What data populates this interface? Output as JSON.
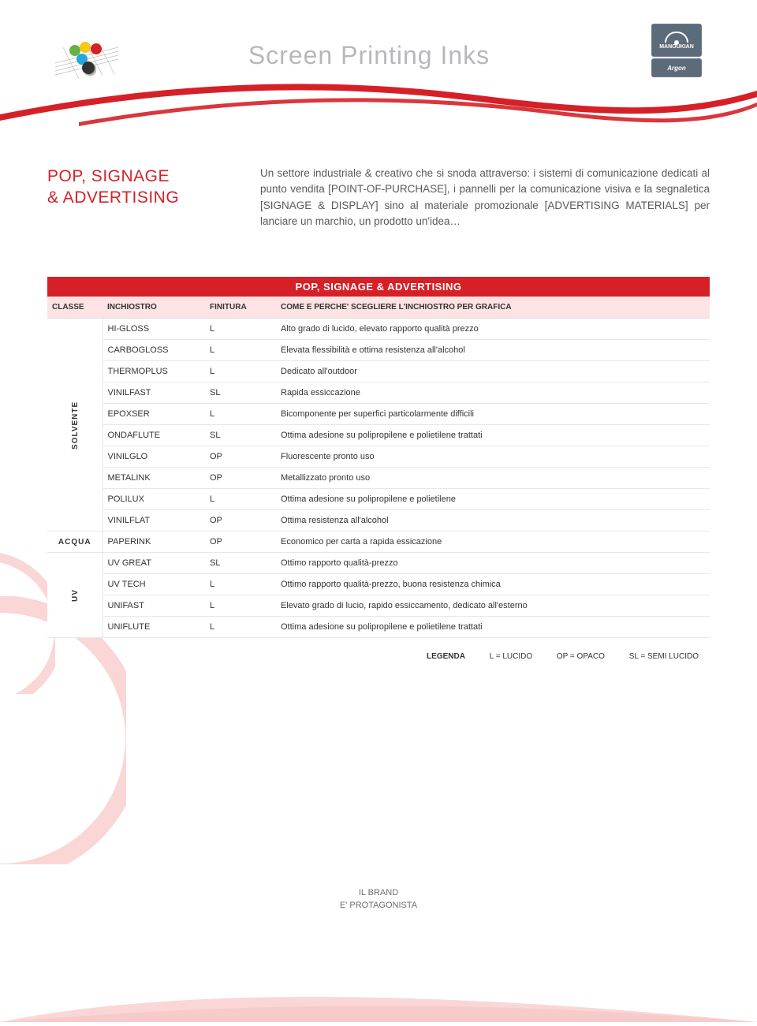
{
  "header": {
    "title": "Screen Printing Inks",
    "brand_top": "MANOUKIAN",
    "brand_bottom": "Argon"
  },
  "intro": {
    "title_line1": "POP, SIGNAGE",
    "title_line2": "& ADVERTISING",
    "body": "Un settore industriale & creativo che si snoda attraverso: i sistemi di comunicazione dedicati al punto vendita [POINT-OF-PURCHASE], i pannelli per la comunicazione visiva e la segnaletica [SIGNAGE & DISPLAY] sino al materiale promozionale [ADVERTISING MATERIALS] per lanciare un marchio, un prodotto un'idea…"
  },
  "table": {
    "title": "POP, SIGNAGE & ADVERTISING",
    "columns": {
      "classe": "CLASSE",
      "inchiostro": "INCHIOSTRO",
      "finitura": "FINITURA",
      "desc": "COME E PERCHE' SCEGLIERE L'INCHIOSTRO PER GRAFICA"
    },
    "groups": [
      {
        "classe": "SOLVENTE",
        "vertical": true,
        "rows": [
          {
            "ink": "HI-GLOSS",
            "fin": "L",
            "desc": "Alto grado di lucido, elevato rapporto qualità prezzo"
          },
          {
            "ink": "CARBOGLOSS",
            "fin": "L",
            "desc": "Elevata flessibilità e ottima resistenza all'alcohol"
          },
          {
            "ink": "THERMOPLUS",
            "fin": "L",
            "desc": "Dedicato all'outdoor"
          },
          {
            "ink": "VINILFAST",
            "fin": "SL",
            "desc": "Rapida essiccazione"
          },
          {
            "ink": "EPOXSER",
            "fin": "L",
            "desc": "Bicomponente per superfici particolarmente difficili"
          },
          {
            "ink": "ONDAFLUTE",
            "fin": "SL",
            "desc": "Ottima adesione su polipropilene e polietilene trattati"
          },
          {
            "ink": "VINILGLO",
            "fin": "OP",
            "desc": "Fluorescente pronto uso"
          },
          {
            "ink": "METALINK",
            "fin": "OP",
            "desc": "Metallizzato pronto uso"
          },
          {
            "ink": "POLILUX",
            "fin": "L",
            "desc": "Ottima adesione su polipropilene e polietilene"
          },
          {
            "ink": "VINILFLAT",
            "fin": "OP",
            "desc": "Ottima resistenza all'alcohol"
          }
        ]
      },
      {
        "classe": "ACQUA",
        "vertical": false,
        "rows": [
          {
            "ink": "PAPERINK",
            "fin": "OP",
            "desc": "Economico per carta a rapida essicazione"
          }
        ]
      },
      {
        "classe": "UV",
        "vertical": true,
        "rows": [
          {
            "ink": "UV GREAT",
            "fin": "SL",
            "desc": "Ottimo rapporto qualità-prezzo"
          },
          {
            "ink": "UV TECH",
            "fin": "L",
            "desc": "Ottimo rapporto qualità-prezzo, buona resistenza chimica"
          },
          {
            "ink": "UNIFAST",
            "fin": "L",
            "desc": "Elevato grado di lucio, rapido essiccamento, dedicato all'esterno"
          },
          {
            "ink": "UNIFLUTE",
            "fin": "L",
            "desc": "Ottima adesione su polipropilene e polietilene trattati"
          }
        ]
      }
    ]
  },
  "legend": {
    "label": "LEGENDA",
    "l": "L = LUCIDO",
    "op": "OP = OPACO",
    "sl": "SL = SEMI LUCIDO"
  },
  "footer": {
    "line1": "IL BRAND",
    "line2": "E' PROTAGONISTA"
  },
  "colors": {
    "red": "#d62027",
    "lightred": "#fde3e3",
    "grey_text": "#58595b",
    "brandbox": "#5c6b7a"
  }
}
